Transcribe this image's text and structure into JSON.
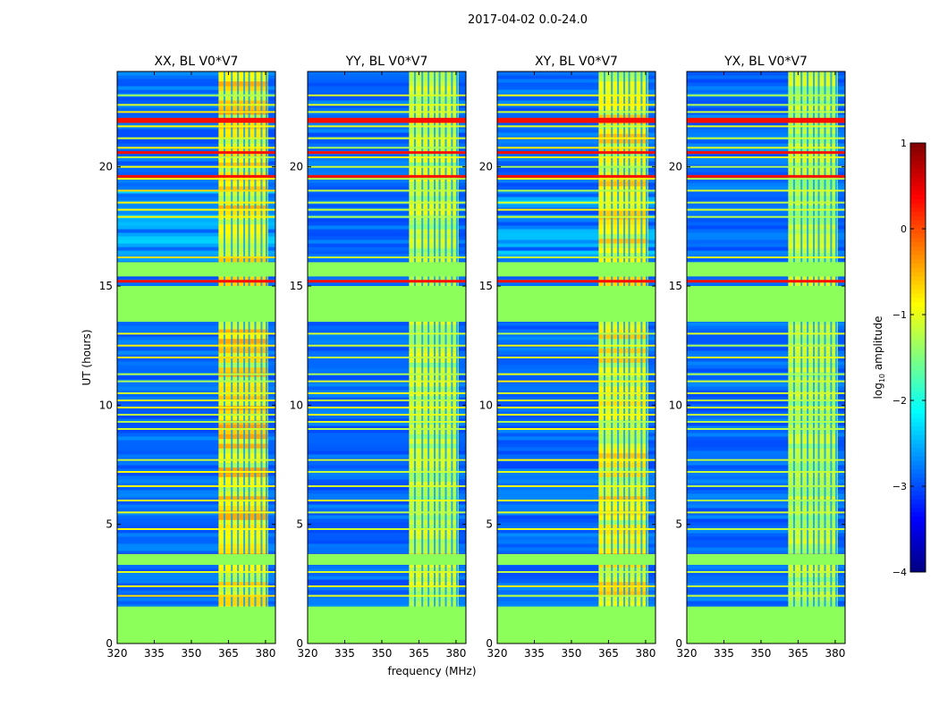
{
  "suptitle": "2017-04-02 0.0-24.0",
  "chart_data": {
    "type": "heatmap",
    "title": "2017-04-02 0.0-24.0",
    "xlabel": "frequency (MHz)",
    "ylabel": "UT (hours)",
    "xlim": [
      320,
      384
    ],
    "ylim": [
      0,
      24
    ],
    "xticks": [
      320,
      335,
      350,
      365,
      380
    ],
    "yticks": [
      0,
      5,
      10,
      15,
      20
    ],
    "panels": [
      {
        "title": "XX, BL V0*V7",
        "strength": 1.0
      },
      {
        "title": "YY, BL V0*V7",
        "strength": 0.55
      },
      {
        "title": "XY, BL V0*V7",
        "strength": 0.9
      },
      {
        "title": "YX, BL V0*V7",
        "strength": 0.5
      }
    ],
    "colorbar": {
      "label_prefix": "log",
      "label_sub": "10",
      "label_suffix": " amplitude",
      "range": [
        -4,
        1
      ],
      "ticks": [
        1,
        0,
        -1,
        -2,
        -3,
        -4
      ],
      "tick_labels": [
        "1",
        "0",
        "−1",
        "−2",
        "−3",
        "−4"
      ]
    },
    "flagged_ut_ranges": [
      [
        0,
        1.55
      ],
      [
        13.5,
        15.0
      ],
      [
        3.3,
        3.75
      ],
      [
        15.4,
        16.0
      ]
    ],
    "rfi_band_mhz": [
      361,
      381
    ],
    "colors": {
      "background_blue": "#1a3cff",
      "flag_green": "#8cff5a",
      "band_base": "#a0ff50"
    }
  }
}
